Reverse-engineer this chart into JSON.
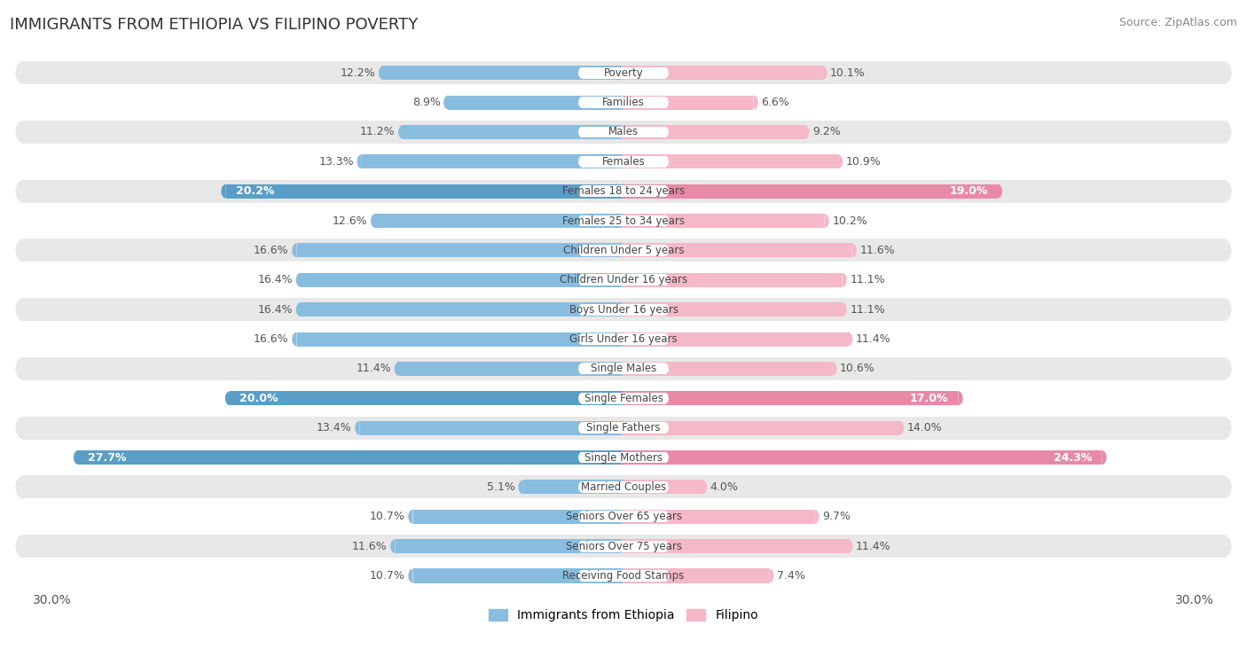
{
  "title": "IMMIGRANTS FROM ETHIOPIA VS FILIPINO POVERTY",
  "source": "Source: ZipAtlas.com",
  "categories": [
    "Poverty",
    "Families",
    "Males",
    "Females",
    "Females 18 to 24 years",
    "Females 25 to 34 years",
    "Children Under 5 years",
    "Children Under 16 years",
    "Boys Under 16 years",
    "Girls Under 16 years",
    "Single Males",
    "Single Females",
    "Single Fathers",
    "Single Mothers",
    "Married Couples",
    "Seniors Over 65 years",
    "Seniors Over 75 years",
    "Receiving Food Stamps"
  ],
  "ethiopia_values": [
    12.2,
    8.9,
    11.2,
    13.3,
    20.2,
    12.6,
    16.6,
    16.4,
    16.4,
    16.6,
    11.4,
    20.0,
    13.4,
    27.7,
    5.1,
    10.7,
    11.6,
    10.7
  ],
  "filipino_values": [
    10.1,
    6.6,
    9.2,
    10.9,
    19.0,
    10.2,
    11.6,
    11.1,
    11.1,
    11.4,
    10.6,
    17.0,
    14.0,
    24.3,
    4.0,
    9.7,
    11.4,
    7.4
  ],
  "ethiopia_color": "#89bde0",
  "ethiopia_color_highlight": "#5a9ec8",
  "filipino_color": "#f5b8c8",
  "filipino_color_highlight": "#e989a8",
  "highlight_rows": [
    4,
    11,
    13
  ],
  "xlim": 30.0,
  "legend_ethiopia": "Immigrants from Ethiopia",
  "legend_filipino": "Filipino",
  "bg_color": "#ffffff",
  "row_bg_light": "#ffffff",
  "row_bg_dark": "#e8e8e8",
  "label_color": "#555555",
  "highlight_label_color": "#ffffff"
}
